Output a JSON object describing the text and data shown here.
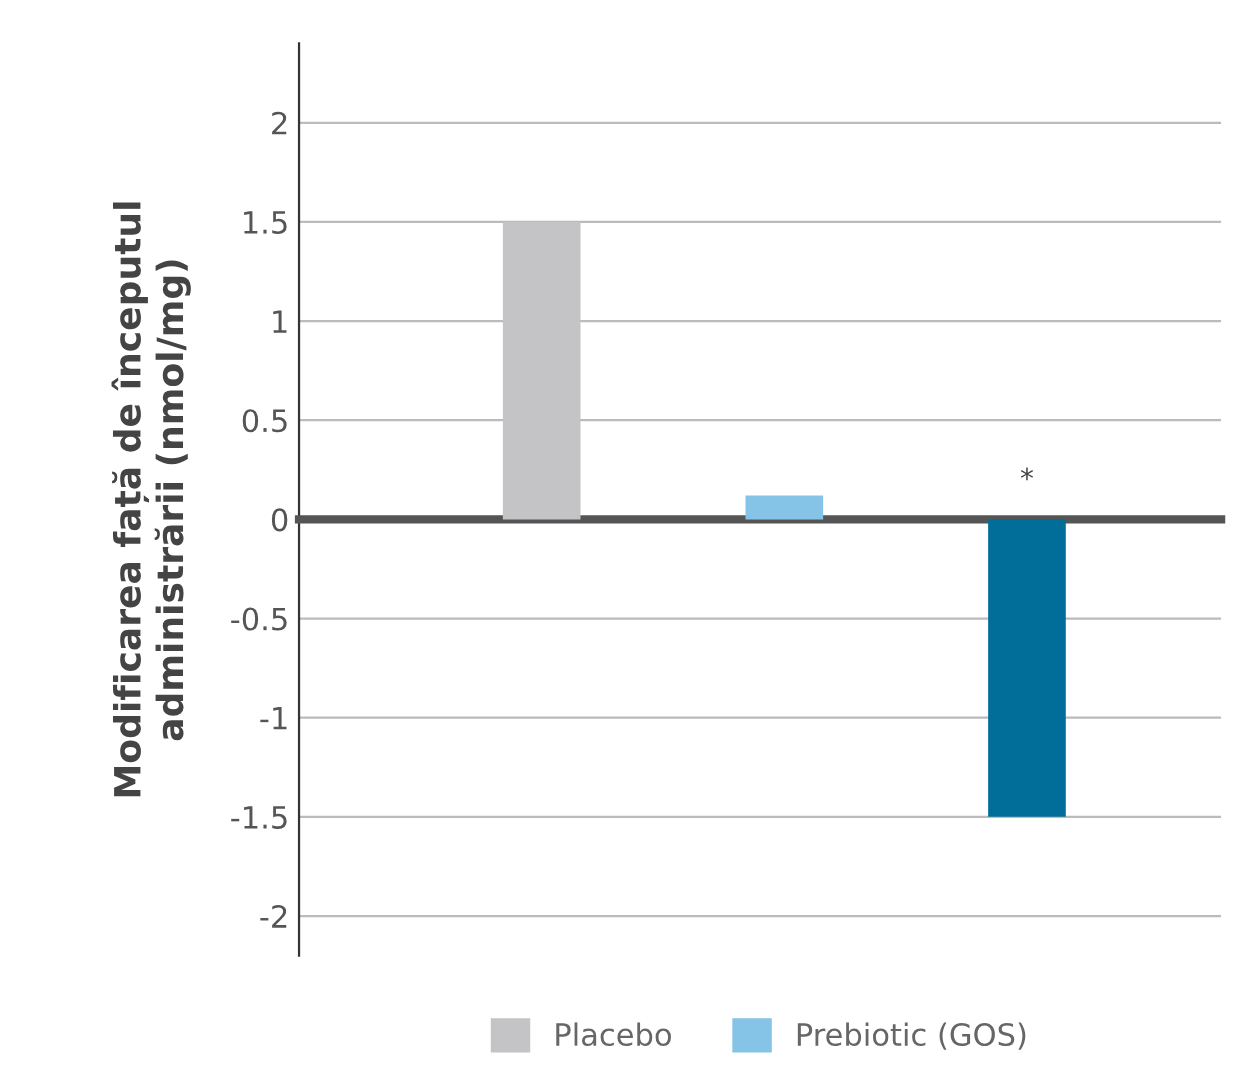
{
  "chart_data": {
    "type": "bar",
    "ylabel": "Modificarea față de începutul\nadministrării (nmol/mg)",
    "categories": [
      null,
      null,
      null
    ],
    "series": [
      {
        "name": "Placebo",
        "color": "#c4c4c6",
        "values": [
          1.5,
          null,
          null
        ]
      },
      {
        "name": "Prebiotic (GOS)",
        "color": "#85c4e6",
        "values": [
          null,
          0.12,
          null
        ]
      },
      {
        "color": "#006e98",
        "values": [
          null,
          null,
          -1.5
        ]
      }
    ],
    "ylim": [
      -2.2,
      2.4
    ],
    "yticks": [
      -2,
      -1.5,
      -1,
      -0.5,
      0,
      0.5,
      1,
      1.5,
      2
    ],
    "grid": "y",
    "legend": "bottom",
    "annotations": [
      "*"
    ]
  }
}
